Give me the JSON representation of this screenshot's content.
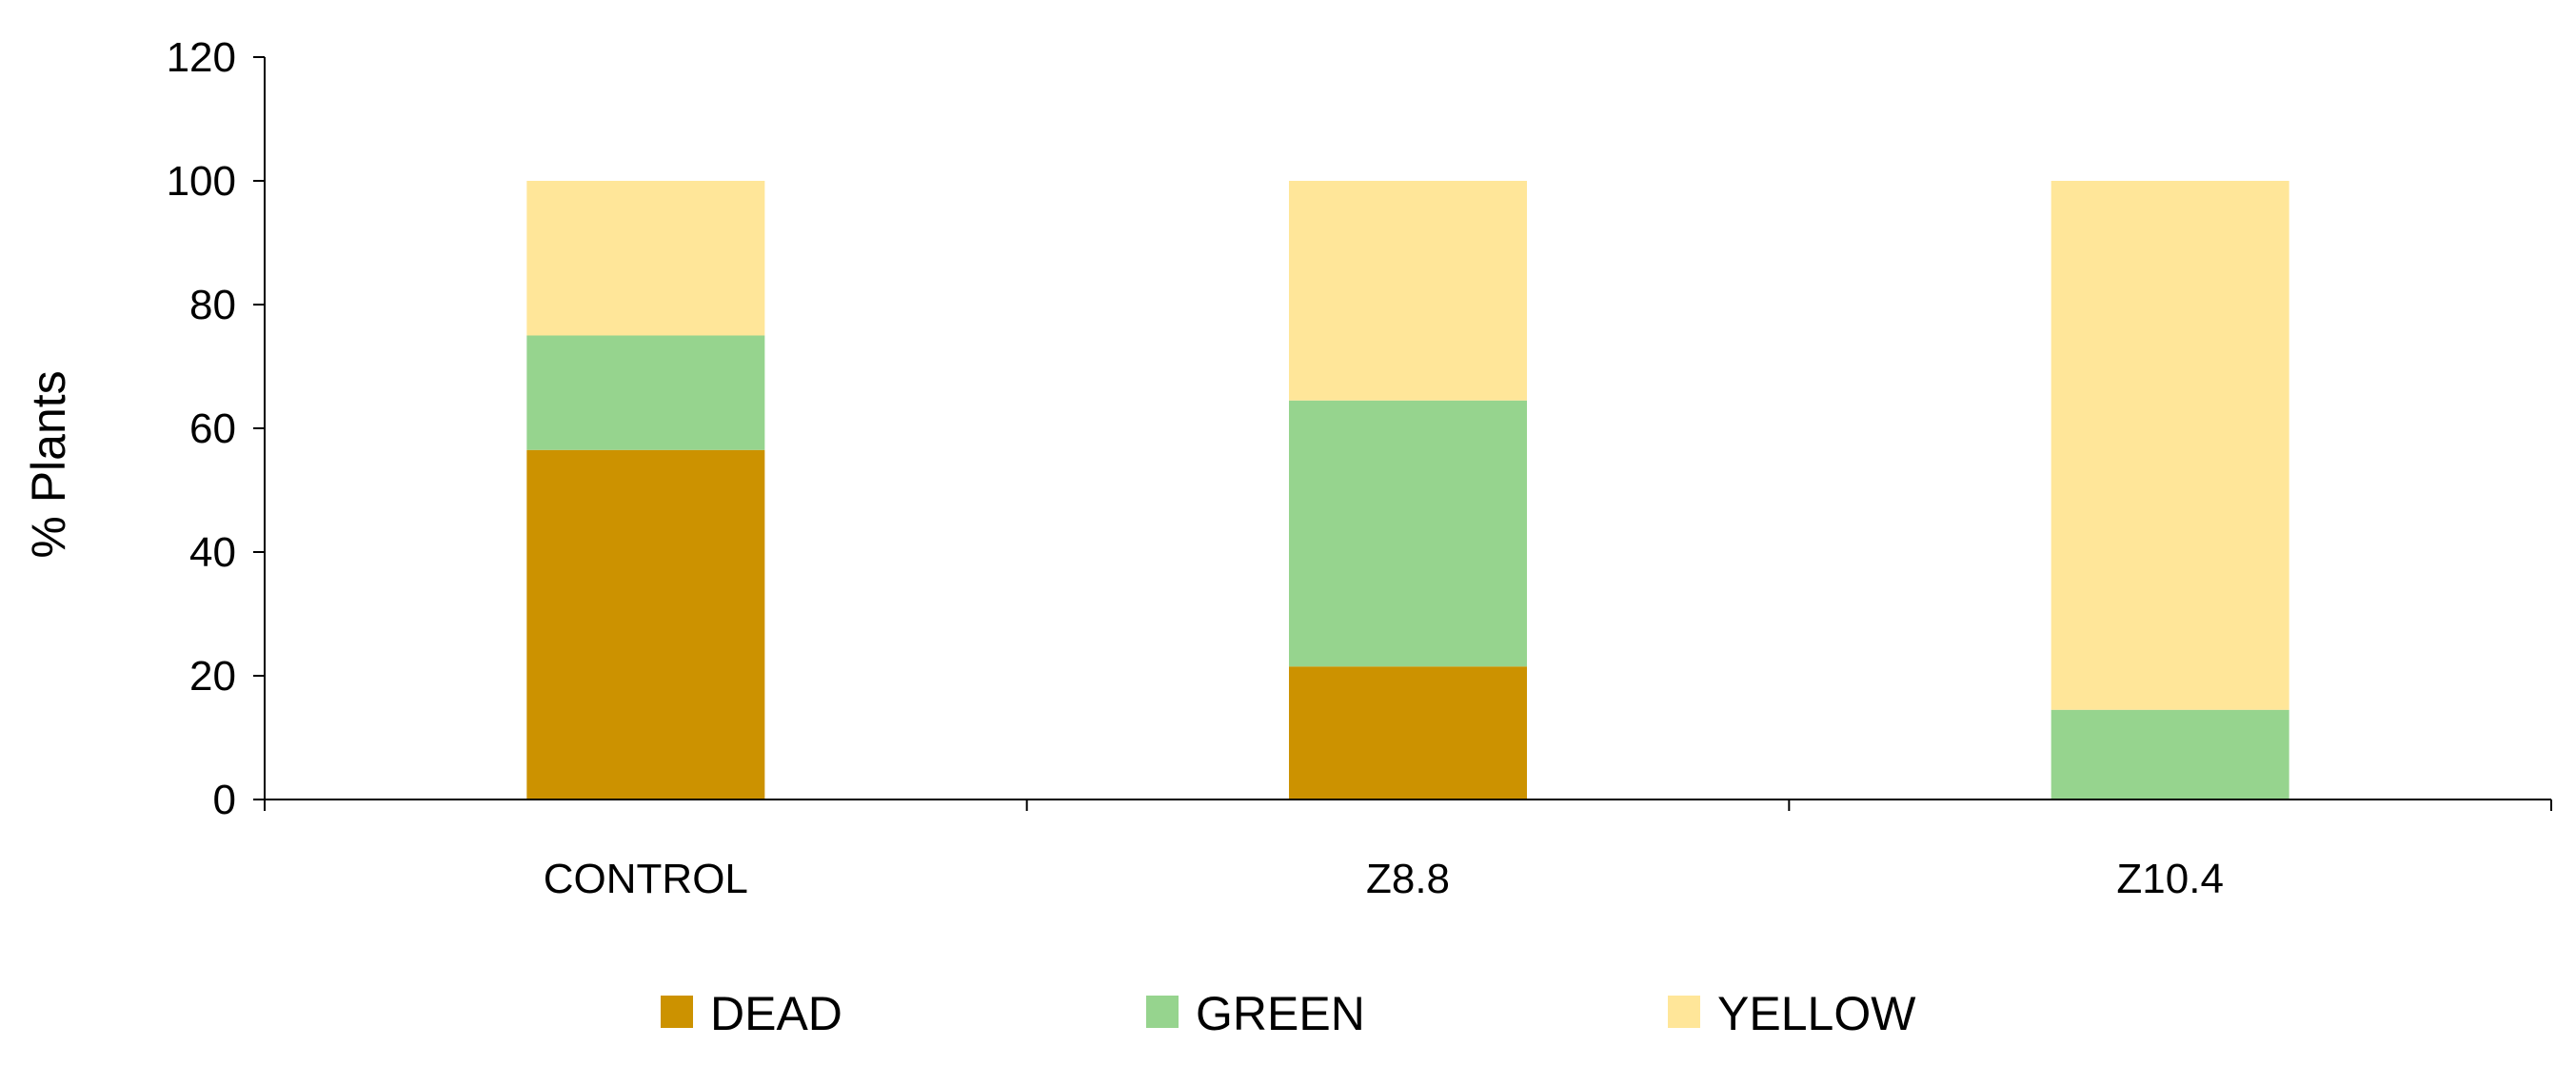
{
  "chart_data": {
    "type": "bar",
    "stacked": true,
    "title": "",
    "xlabel": "",
    "ylabel": "% Plants",
    "ylim": [
      0,
      120
    ],
    "yticks": [
      "0",
      "20",
      "40",
      "60",
      "80",
      "100",
      "120"
    ],
    "grid": false,
    "legend_position": "bottom",
    "categories": [
      "CONTROL",
      "Z8.8",
      "Z10.4"
    ],
    "series": [
      {
        "name": "DEAD",
        "color": "#cc9200",
        "values": [
          56.5,
          21.5,
          0
        ]
      },
      {
        "name": "GREEN",
        "color": "#96d48e",
        "values": [
          18.5,
          43,
          14.5
        ]
      },
      {
        "name": "YELLOW",
        "color": "#ffe699",
        "values": [
          25,
          35.5,
          85.5
        ]
      }
    ]
  }
}
